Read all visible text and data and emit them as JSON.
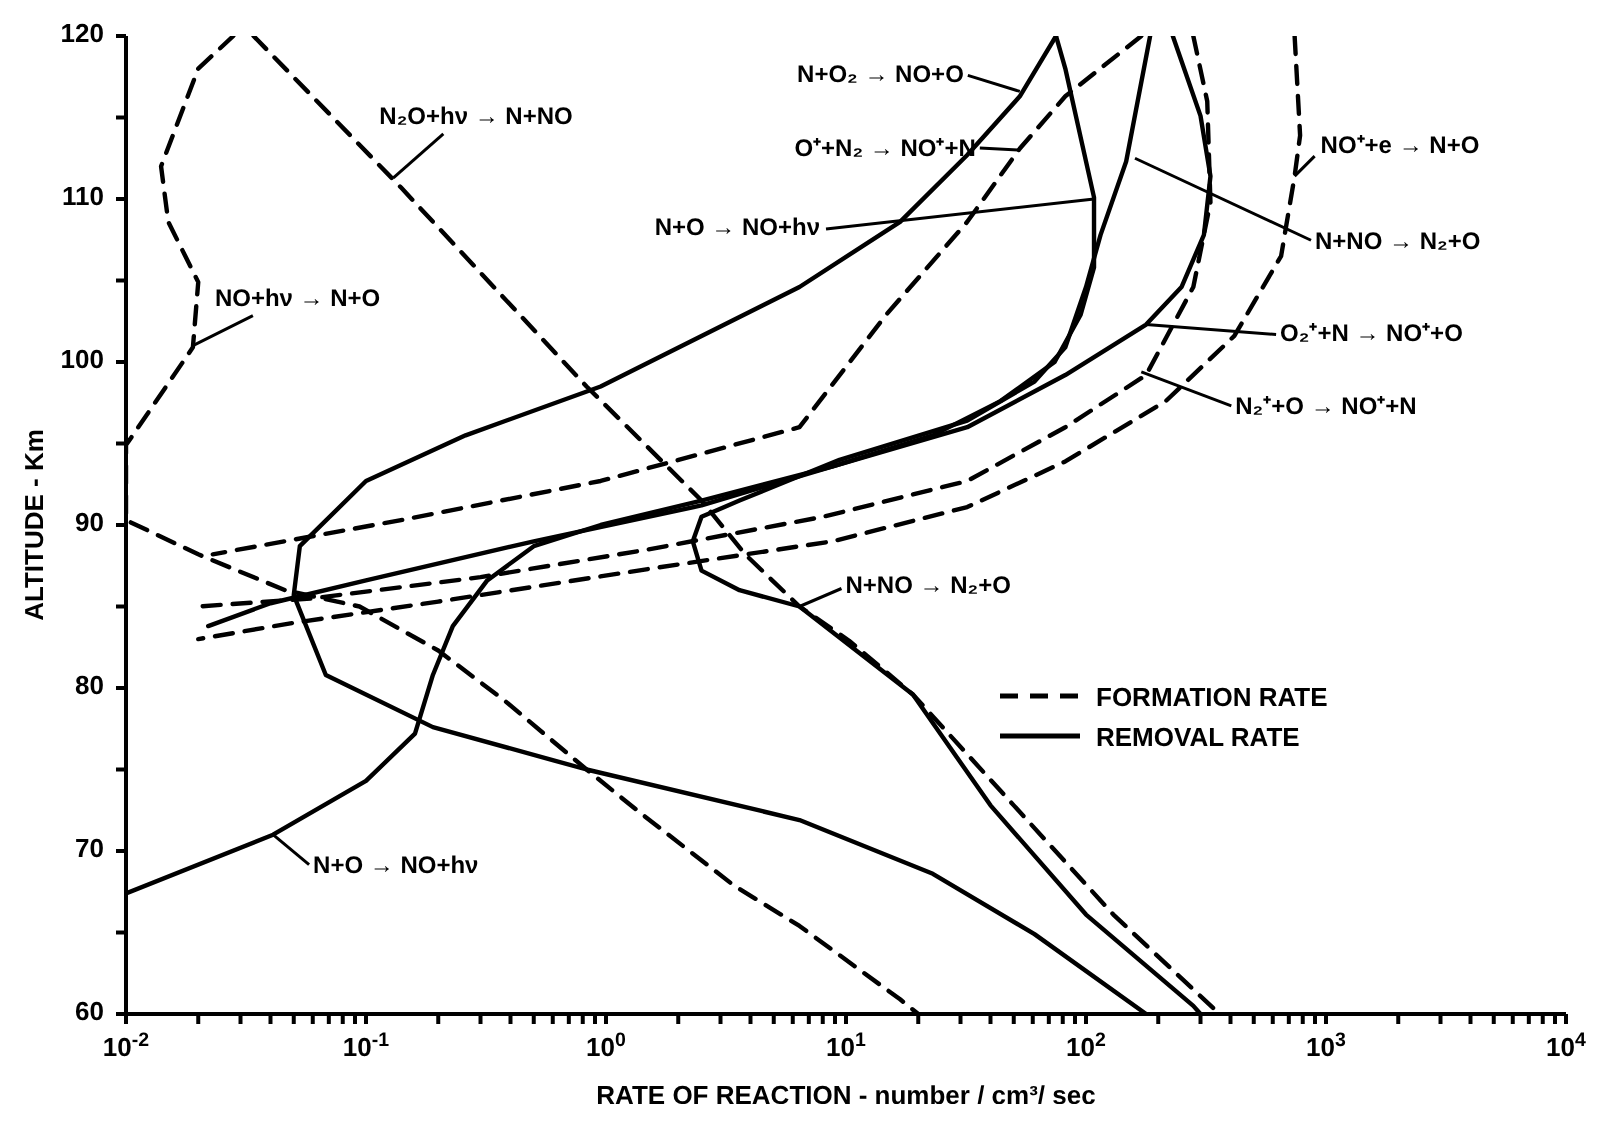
{
  "chart_data": {
    "type": "line",
    "xlabel": "RATE OF REACTION - number / cm³/ sec",
    "ylabel": "ALTITUDE - Km",
    "log": "x",
    "grid": false,
    "marker": "none",
    "legend": "right",
    "xlim": [
      0.01,
      10000
    ],
    "ylim": [
      60,
      120
    ],
    "xticks": [
      {
        "value": 0.01,
        "label": "10$^{-2}$"
      },
      {
        "value": 0.02,
        "label": null
      },
      {
        "value": 0.03,
        "label": null
      },
      {
        "value": 0.04,
        "label": null
      },
      {
        "value": 0.05,
        "label": null
      },
      {
        "value": 0.06,
        "label": null
      },
      {
        "value": 0.07,
        "label": null
      },
      {
        "value": 0.08,
        "label": null
      },
      {
        "value": 0.09,
        "label": null
      },
      {
        "value": 0.1,
        "label": "10$^{-1}$"
      },
      {
        "value": 0.2,
        "label": null
      },
      {
        "value": 0.3,
        "label": null
      },
      {
        "value": 0.4,
        "label": null
      },
      {
        "value": 0.5,
        "label": null
      },
      {
        "value": 0.6,
        "label": null
      },
      {
        "value": 0.7,
        "label": null
      },
      {
        "value": 0.8,
        "label": null
      },
      {
        "value": 0.9,
        "label": null
      },
      {
        "value": 1,
        "label": "10$^{0}$"
      },
      {
        "value": 2,
        "label": null
      },
      {
        "value": 3,
        "label": null
      },
      {
        "value": 4,
        "label": null
      },
      {
        "value": 5,
        "label": null
      },
      {
        "value": 6,
        "label": null
      },
      {
        "value": 7,
        "label": null
      },
      {
        "value": 8,
        "label": null
      },
      {
        "value": 9,
        "label": null
      },
      {
        "value": 10,
        "label": "10$^{1}$"
      },
      {
        "value": 20,
        "label": null
      },
      {
        "value": 30,
        "label": null
      },
      {
        "value": 40,
        "label": null
      },
      {
        "value": 50,
        "label": null
      },
      {
        "value": 60,
        "label": null
      },
      {
        "value": 70,
        "label": null
      },
      {
        "value": 80,
        "label": null
      },
      {
        "value": 90,
        "label": null
      },
      {
        "value": 100,
        "label": "10$^{2}$"
      },
      {
        "value": 200,
        "label": null
      },
      {
        "value": 300,
        "label": null
      },
      {
        "value": 400,
        "label": null
      },
      {
        "value": 500,
        "label": null
      },
      {
        "value": 600,
        "label": null
      },
      {
        "value": 700,
        "label": null
      },
      {
        "value": 800,
        "label": null
      },
      {
        "value": 900,
        "label": null
      },
      {
        "value": 1000,
        "label": "10$^{3}$"
      },
      {
        "value": 2000,
        "label": null
      },
      {
        "value": 3000,
        "label": null
      },
      {
        "value": 4000,
        "label": null
      },
      {
        "value": 5000,
        "label": null
      },
      {
        "value": 6000,
        "label": null
      },
      {
        "value": 7000,
        "label": null
      },
      {
        "value": 8000,
        "label": null
      },
      {
        "value": 9000,
        "label": null
      },
      {
        "value": 10000,
        "label": "10$^{4}$"
      }
    ],
    "yticks": [
      60,
      {
        "value": 65,
        "label": null
      },
      70,
      {
        "value": 75,
        "label": null
      },
      80,
      {
        "value": 85,
        "label": null
      },
      90,
      {
        "value": 95,
        "label": null
      },
      100,
      {
        "value": 105,
        "label": null
      },
      110,
      {
        "value": 115,
        "label": null
      },
      120
    ],
    "series": [
      {
        "type": "line",
        "color": "#000000",
        "line_style": "dashed",
        "x": [
          0.028,
          0.02,
          0.014,
          0.015,
          0.02,
          0.019,
          0.01,
          0.01,
          0.02,
          0.046,
          0.094,
          0.2,
          0.38,
          0.83,
          1.4,
          3.4,
          6.4,
          16.8,
          20
        ],
        "values": [
          120,
          118,
          112,
          108.6,
          104.9,
          100.9,
          94.9,
          90.3,
          88.2,
          86,
          85,
          82.3,
          79.2,
          75,
          72.3,
          67.9,
          65.4,
          60.9,
          60
        ]
      },
      {
        "type": "line",
        "name": "FORMATION RATE",
        "color": "#000000",
        "line_style": "dashed",
        "x": [
          0.034,
          0.14,
          0.83,
          2.5,
          3.8,
          6.4,
          10.3,
          19,
          50,
          130,
          360
        ],
        "values": [
          120,
          110.7,
          98.5,
          91.5,
          88.2,
          85,
          82.9,
          79.6,
          72.8,
          66.1,
          60
        ]
      },
      {
        "type": "line",
        "color": "#000000",
        "line_style": "solid",
        "x": [
          75,
          53,
          32,
          16.8,
          6.4,
          0.95,
          0.26,
          0.1,
          0.053,
          0.05,
          0.068,
          0.19,
          0.83,
          6.4,
          23,
          61,
          178
        ],
        "values": [
          120,
          116.3,
          112.7,
          108.6,
          104.6,
          98.5,
          95.5,
          92.7,
          88.7,
          85.7,
          80.8,
          77.6,
          75,
          71.9,
          68.6,
          64.9,
          60
        ]
      },
      {
        "type": "line",
        "name": "REMOVAL RATE",
        "color": "#000000",
        "line_style": "solid",
        "x": [
          0.01,
          0.041,
          0.1,
          0.16,
          0.19,
          0.23,
          0.32,
          0.5,
          0.95,
          2.5,
          8.8,
          23,
          44,
          74,
          95,
          108,
          108,
          82,
          75
        ],
        "values": [
          67.4,
          71,
          74.3,
          77.2,
          80.8,
          83.8,
          86.6,
          88.7,
          90,
          91.5,
          93.6,
          95.5,
          97.6,
          100,
          102.9,
          105.8,
          110.1,
          118,
          120
        ]
      },
      {
        "type": "line",
        "color": "#000000",
        "line_style": "dashed",
        "x": [
          170,
          82,
          53,
          32,
          14.7,
          6.4,
          0.95,
          0.14,
          0.023
        ],
        "values": [
          120,
          116.3,
          113.1,
          108.6,
          102.9,
          96,
          92.7,
          90.3,
          88.2
        ]
      },
      {
        "type": "line",
        "color": "#000000",
        "line_style": "solid",
        "x": [
          185,
          147,
          115,
          100,
          82,
          61,
          32,
          9.4,
          3.6,
          2.5,
          2.3,
          2.5,
          3.6,
          6.4,
          19,
          40,
          100,
          280,
          300
        ],
        "values": [
          120,
          112.3,
          107.8,
          104.6,
          100.9,
          98.8,
          96.4,
          94,
          91.5,
          90.5,
          89,
          87.2,
          86,
          85,
          79.6,
          72.8,
          66.1,
          60.5,
          60
        ]
      },
      {
        "type": "line",
        "color": "#000000",
        "line_style": "solid",
        "x": [
          230,
          300,
          330,
          310,
          250,
          178,
          82,
          32,
          8.8,
          2.5,
          0.5,
          0.1,
          0.04,
          0.022
        ],
        "values": [
          120,
          115.1,
          111.4,
          107.8,
          104.6,
          102.3,
          99.2,
          96,
          93.6,
          91.2,
          89,
          86.6,
          85.2,
          83.8
        ]
      },
      {
        "type": "line",
        "color": "#000000",
        "line_style": "dashed",
        "x": [
          280,
          320,
          330,
          280,
          178,
          82,
          32,
          8,
          1.5,
          0.3,
          0.06,
          0.02
        ],
        "values": [
          120,
          116,
          109.8,
          104.6,
          99.2,
          96,
          92.7,
          90.5,
          88.5,
          86.8,
          85.5,
          85
        ]
      },
      {
        "type": "line",
        "color": "#000000",
        "line_style": "dashed",
        "x": [
          740,
          780,
          740,
          650,
          415,
          215,
          82,
          32,
          8.8,
          1.5,
          0.2,
          0.05,
          0.02
        ],
        "values": [
          120,
          113.9,
          111.4,
          106.5,
          101.6,
          97.6,
          93.9,
          91.1,
          89,
          87.3,
          85.3,
          84,
          83
        ]
      }
    ],
    "annotations": [
      {
        "text": "N₂O+hν → N+NO",
        "x": 0.13,
        "y": 111.3
      },
      {
        "text": "NO+hν → N+O",
        "x": 0.019,
        "y": 101
      },
      {
        "text": "N+O₂ → NO+O",
        "x": 53,
        "y": 116.6
      },
      {
        "text": "O⁺+N₂ → NO⁺+N",
        "x": 53,
        "y": 113
      },
      {
        "text": "N+O → NO+hν",
        "x": 108,
        "y": 110
      },
      {
        "text": "N+NO → N₂+O",
        "x": 160,
        "y": 112.5
      },
      {
        "text": "NO⁺+e → N+O",
        "x": 740,
        "y": 111.4
      },
      {
        "text": "O₂⁺+N → NO⁺+O",
        "x": 178,
        "y": 102.3
      },
      {
        "text": "N₂⁺+O → NO⁺+N",
        "x": 170,
        "y": 99.4
      },
      {
        "text": "N+NO → N₂+O",
        "x": 6.4,
        "y": 85
      },
      {
        "text": "N+O → NO+hν",
        "x": 0.041,
        "y": 71
      }
    ]
  }
}
